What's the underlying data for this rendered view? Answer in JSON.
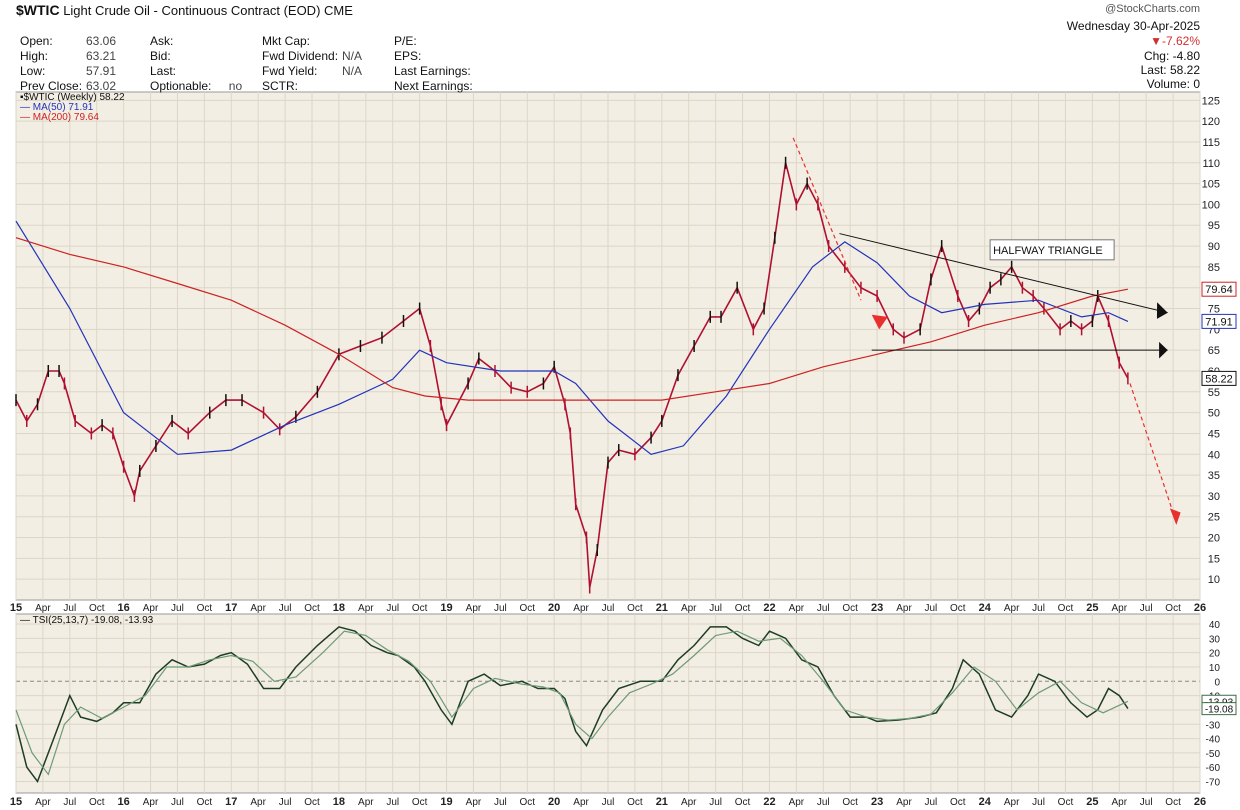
{
  "header": {
    "symbol": "$WTIC",
    "name": "Light Crude Oil - Continuous Contract (EOD)",
    "exchange": "CME",
    "watermark": "@StockCharts.com",
    "date": "Wednesday  30-Apr-2025",
    "change_pct": "▼-7.62%",
    "chg_label": "Chg:",
    "chg_value": "-4.80",
    "last_label": "Last:",
    "last_value": "58.22",
    "volume_label": "Volume:",
    "volume_value": "0",
    "col1": [
      {
        "label": "Open:",
        "value": "63.06"
      },
      {
        "label": "High:",
        "value": "63.21"
      },
      {
        "label": "Low:",
        "value": "57.91"
      },
      {
        "label": "Prev Close:",
        "value": "63.02"
      }
    ],
    "col2": [
      {
        "label": "Ask:",
        "value": ""
      },
      {
        "label": "Bid:",
        "value": ""
      },
      {
        "label": "Last:",
        "value": ""
      },
      {
        "label": "Optionable:",
        "value": "no"
      }
    ],
    "col3": [
      {
        "label": "Mkt Cap:",
        "value": ""
      },
      {
        "label": "Fwd Dividend:",
        "value": "N/A"
      },
      {
        "label": "Fwd Yield:",
        "value": "N/A"
      },
      {
        "label": "SCTR:",
        "value": ""
      }
    ],
    "col4": [
      {
        "label": "P/E:",
        "value": ""
      },
      {
        "label": "EPS:",
        "value": ""
      },
      {
        "label": "Last Earnings:",
        "value": ""
      },
      {
        "label": "Next Earnings:",
        "value": ""
      }
    ]
  },
  "legend": {
    "price": "$WTIC (Weekly) 58.22",
    "ma50": "MA(50) 71.91",
    "ma200": "MA(200) 79.64",
    "tsi": "TSI(25,13,7) -19.08, -13.93"
  },
  "colors": {
    "background": "#f3eee3",
    "grid": "#dcd6c8",
    "ma50": "#2233bb",
    "ma200": "#cc2222",
    "price_up": "#111111",
    "price_down": "#b01030",
    "tsi": "#3d6b45",
    "annotation_red": "#e83030"
  },
  "chart_data": [
    {
      "type": "line",
      "title": "$WTIC (Weekly)",
      "x_ticks": [
        "15",
        "Apr",
        "Jul",
        "Oct",
        "16",
        "Apr",
        "Jul",
        "Oct",
        "17",
        "Apr",
        "Jul",
        "Oct",
        "18",
        "Apr",
        "Jul",
        "Oct",
        "19",
        "Apr",
        "Jul",
        "Oct",
        "20",
        "Apr",
        "Jul",
        "Oct",
        "21",
        "Apr",
        "Jul",
        "Oct",
        "22",
        "Apr",
        "Jul",
        "Oct",
        "23",
        "Apr",
        "Jul",
        "Oct",
        "24",
        "Apr",
        "Jul",
        "Oct",
        "25",
        "Apr",
        "Jul",
        "Oct",
        "26"
      ],
      "x_range": [
        2015.0,
        2026.0
      ],
      "y_ticks": [
        10,
        15,
        20,
        25,
        30,
        35,
        40,
        45,
        50,
        55,
        60,
        65,
        70,
        75,
        80,
        85,
        90,
        95,
        100,
        105,
        110,
        115,
        120,
        125
      ],
      "ylim": [
        5,
        127
      ],
      "series": [
        {
          "name": "$WTIC (Weekly)",
          "x": [
            2015.0,
            2015.1,
            2015.2,
            2015.3,
            2015.4,
            2015.45,
            2015.55,
            2015.7,
            2015.8,
            2015.9,
            2016.0,
            2016.1,
            2016.15,
            2016.3,
            2016.45,
            2016.6,
            2016.8,
            2016.95,
            2017.1,
            2017.3,
            2017.45,
            2017.6,
            2017.8,
            2018.0,
            2018.2,
            2018.4,
            2018.6,
            2018.75,
            2018.85,
            2018.95,
            2019.0,
            2019.2,
            2019.3,
            2019.45,
            2019.6,
            2019.75,
            2019.9,
            2020.0,
            2020.1,
            2020.15,
            2020.2,
            2020.3,
            2020.33,
            2020.4,
            2020.5,
            2020.6,
            2020.75,
            2020.9,
            2021.0,
            2021.15,
            2021.3,
            2021.45,
            2021.55,
            2021.7,
            2021.85,
            2021.95,
            2022.05,
            2022.15,
            2022.25,
            2022.35,
            2022.45,
            2022.55,
            2022.7,
            2022.85,
            2023.0,
            2023.15,
            2023.25,
            2023.4,
            2023.5,
            2023.6,
            2023.75,
            2023.85,
            2023.95,
            2024.05,
            2024.15,
            2024.25,
            2024.35,
            2024.45,
            2024.55,
            2024.7,
            2024.8,
            2024.9,
            2025.0,
            2025.05,
            2025.15,
            2025.25,
            2025.33
          ],
          "values": [
            53,
            48,
            52,
            60,
            60,
            57,
            48,
            45,
            47,
            45,
            37,
            30,
            36,
            42,
            48,
            45,
            50,
            53,
            53,
            50,
            46,
            49,
            55,
            64,
            66,
            68,
            72,
            75,
            66,
            52,
            47,
            57,
            63,
            60,
            56,
            55,
            57,
            61,
            52,
            45,
            28,
            20,
            8,
            17,
            38,
            41,
            40,
            44,
            48,
            59,
            66,
            73,
            73,
            80,
            70,
            75,
            92,
            110,
            100,
            105,
            100,
            90,
            85,
            80,
            78,
            70,
            68,
            70,
            82,
            90,
            78,
            72,
            75,
            80,
            82,
            85,
            80,
            78,
            75,
            70,
            72,
            70,
            72,
            78,
            72,
            62,
            58.22
          ]
        },
        {
          "name": "MA(50)",
          "x": [
            2015.0,
            2015.5,
            2016.0,
            2016.5,
            2017.0,
            2017.5,
            2018.0,
            2018.5,
            2018.75,
            2019.0,
            2019.5,
            2020.0,
            2020.2,
            2020.5,
            2020.9,
            2021.2,
            2021.6,
            2022.0,
            2022.4,
            2022.7,
            2023.0,
            2023.3,
            2023.6,
            2024.0,
            2024.5,
            2024.9,
            2025.15,
            2025.33
          ],
          "values": [
            96,
            75,
            50,
            40,
            41,
            47,
            52,
            58,
            65,
            62,
            60,
            60,
            57,
            48,
            40,
            42,
            54,
            70,
            85,
            91,
            86,
            78,
            74,
            76,
            77,
            73,
            74,
            71.91
          ]
        },
        {
          "name": "MA(200)",
          "x": [
            2015.0,
            2015.5,
            2016.0,
            2016.5,
            2017.0,
            2017.5,
            2018.0,
            2018.5,
            2018.8,
            2019.2,
            2019.7,
            2020.2,
            2020.6,
            2021.0,
            2021.5,
            2022.0,
            2022.5,
            2023.0,
            2023.5,
            2024.0,
            2024.5,
            2025.0,
            2025.33
          ],
          "values": [
            92,
            88,
            85,
            81,
            77,
            71,
            64,
            56,
            54,
            53,
            53,
            53,
            53,
            53,
            55,
            57,
            61,
            64,
            67,
            71,
            74,
            78,
            79.64
          ]
        }
      ]
    },
    {
      "type": "line",
      "title": "TSI(25,13,7)",
      "x_range": [
        2015.0,
        2026.0
      ],
      "y_ticks": [
        -70,
        -60,
        -50,
        -40,
        -30,
        -20,
        -10,
        0,
        10,
        20,
        30,
        40
      ],
      "ylim": [
        -78,
        47
      ],
      "series": [
        {
          "name": "TSI",
          "x": [
            2015.0,
            2015.1,
            2015.2,
            2015.35,
            2015.5,
            2015.6,
            2015.75,
            2015.9,
            2016.0,
            2016.15,
            2016.3,
            2016.45,
            2016.6,
            2016.75,
            2016.9,
            2017.0,
            2017.15,
            2017.3,
            2017.45,
            2017.6,
            2017.8,
            2018.0,
            2018.15,
            2018.3,
            2018.45,
            2018.55,
            2018.7,
            2018.8,
            2018.95,
            2019.05,
            2019.2,
            2019.35,
            2019.5,
            2019.7,
            2019.85,
            2020.0,
            2020.1,
            2020.2,
            2020.3,
            2020.45,
            2020.6,
            2020.8,
            2021.0,
            2021.15,
            2021.3,
            2021.45,
            2021.6,
            2021.75,
            2021.9,
            2022.0,
            2022.15,
            2022.3,
            2022.45,
            2022.6,
            2022.75,
            2022.9,
            2023.0,
            2023.2,
            2023.4,
            2023.55,
            2023.7,
            2023.8,
            2023.95,
            2024.1,
            2024.25,
            2024.4,
            2024.5,
            2024.65,
            2024.8,
            2024.95,
            2025.05,
            2025.15,
            2025.25,
            2025.33
          ],
          "values": [
            -30,
            -60,
            -70,
            -40,
            -10,
            -25,
            -28,
            -22,
            -15,
            -15,
            5,
            15,
            10,
            12,
            18,
            20,
            12,
            -5,
            -5,
            10,
            25,
            38,
            35,
            25,
            20,
            18,
            10,
            0,
            -20,
            -30,
            0,
            5,
            -3,
            0,
            -5,
            -5,
            -12,
            -35,
            -45,
            -20,
            -5,
            0,
            0,
            15,
            25,
            38,
            38,
            30,
            25,
            35,
            30,
            15,
            10,
            -10,
            -25,
            -25,
            -28,
            -27,
            -25,
            -22,
            -5,
            15,
            5,
            -20,
            -25,
            -10,
            5,
            0,
            -15,
            -25,
            -20,
            -5,
            -10,
            -19.08
          ]
        },
        {
          "name": "Signal",
          "x": [
            2015.0,
            2015.15,
            2015.3,
            2015.45,
            2015.6,
            2015.8,
            2016.0,
            2016.2,
            2016.4,
            2016.6,
            2016.8,
            2017.0,
            2017.2,
            2017.4,
            2017.6,
            2017.85,
            2018.05,
            2018.25,
            2018.45,
            2018.65,
            2018.85,
            2019.05,
            2019.25,
            2019.45,
            2019.7,
            2019.9,
            2020.05,
            2020.2,
            2020.35,
            2020.5,
            2020.7,
            2020.9,
            2021.1,
            2021.3,
            2021.5,
            2021.7,
            2021.9,
            2022.1,
            2022.3,
            2022.5,
            2022.7,
            2022.9,
            2023.1,
            2023.3,
            2023.5,
            2023.7,
            2023.9,
            2024.1,
            2024.3,
            2024.5,
            2024.7,
            2024.9,
            2025.1,
            2025.33
          ],
          "values": [
            -20,
            -50,
            -65,
            -30,
            -18,
            -26,
            -18,
            -10,
            10,
            10,
            15,
            18,
            14,
            0,
            3,
            20,
            35,
            32,
            22,
            14,
            0,
            -25,
            -5,
            2,
            -2,
            -4,
            -8,
            -30,
            -40,
            -25,
            -8,
            -2,
            5,
            18,
            32,
            35,
            28,
            30,
            18,
            0,
            -20,
            -25,
            -27,
            -26,
            -23,
            -8,
            10,
            0,
            -20,
            -8,
            0,
            -15,
            -22,
            -13.93
          ]
        }
      ]
    }
  ],
  "annotations": {
    "triangle_label": "HALFWAY TRIANGLE",
    "price_tags": [
      {
        "text": "79.64",
        "value": 79.64,
        "color": "#cc2222"
      },
      {
        "text": "71.91",
        "value": 71.91,
        "color": "#2233bb"
      },
      {
        "text": "58.22",
        "value": 58.22,
        "color": "#111111"
      }
    ],
    "tsi_tags": [
      {
        "text": "-13.93",
        "value": -13.93
      },
      {
        "text": "-19.08",
        "value": -19.08
      }
    ]
  }
}
